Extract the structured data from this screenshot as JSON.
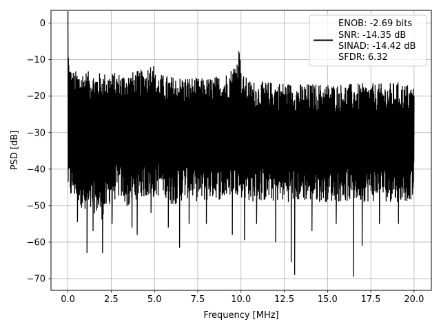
{
  "chart_data": {
    "type": "line",
    "xlabel": "Frequency [MHz]",
    "ylabel": "PSD [dB]",
    "xlim": [
      -0.98,
      21.0
    ],
    "ylim": [
      -73.2,
      3.5
    ],
    "xticks": [
      0.0,
      2.5,
      5.0,
      7.5,
      10.0,
      12.5,
      15.0,
      17.5,
      20.0
    ],
    "xtick_labels": [
      "0.0",
      "2.5",
      "5.0",
      "7.5",
      "10.0",
      "12.5",
      "15.0",
      "17.5",
      "20.0"
    ],
    "yticks": [
      0,
      -10,
      -20,
      -30,
      -40,
      -50,
      -60,
      -70
    ],
    "ytick_labels": [
      "0",
      "−10",
      "−20",
      "−30",
      "−40",
      "−50",
      "−60",
      "−70"
    ],
    "grid": true,
    "line_color": "#000000",
    "legend_position": "top-right",
    "legend": [
      "ENOB: -2.69 bits",
      "SNR: -14.35 dB",
      "SINAD: -14.42 dB",
      "SFDR: 6.32"
    ],
    "series": [
      {
        "x": [
          0.0,
          0.02,
          0.05,
          0.1,
          0.2,
          0.3,
          0.5,
          0.75,
          1.0,
          1.5,
          2.0,
          2.5,
          3.0,
          3.5,
          4.0,
          4.5,
          4.8,
          4.9,
          5.0,
          5.5,
          6.0,
          6.5,
          7.0,
          7.5,
          8.0,
          8.5,
          9.0,
          9.5,
          9.8,
          9.95,
          10.0,
          10.1,
          10.5,
          11.0,
          11.5,
          12.0,
          12.5,
          13.0,
          13.5,
          14.0,
          14.5,
          15.0,
          15.5,
          16.0,
          16.5,
          17.0,
          17.5,
          18.0,
          18.5,
          19.0,
          19.5,
          20.0
        ],
        "top": [
          0.0,
          -12.0,
          -15.0,
          -17.0,
          -18.5,
          -19.0,
          -19.0,
          -19.0,
          -19.0,
          -19.5,
          -19.5,
          -19.5,
          -19.5,
          -19.5,
          -19.0,
          -18.5,
          -16.5,
          -14.5,
          -19.5,
          -20.0,
          -20.5,
          -20.5,
          -20.5,
          -21.0,
          -21.0,
          -20.5,
          -20.0,
          -18.0,
          -15.0,
          -10.0,
          -19.0,
          -20.0,
          -21.5,
          -22.0,
          -22.0,
          -22.0,
          -22.0,
          -22.5,
          -22.5,
          -22.5,
          -22.5,
          -22.5,
          -22.5,
          -22.5,
          -22.5,
          -22.5,
          -22.5,
          -22.5,
          -22.5,
          -22.0,
          -22.5,
          -23.0
        ],
        "bottom": [
          -35.0,
          -47.0,
          -42.0,
          -44.0,
          -45.0,
          -44.0,
          -45.0,
          -46.0,
          -50.0,
          -48.0,
          -50.0,
          -45.0,
          -44.0,
          -47.0,
          -44.0,
          -44.0,
          -44.0,
          -44.0,
          -44.0,
          -43.0,
          -46.0,
          -45.0,
          -44.0,
          -45.0,
          -45.0,
          -44.0,
          -45.0,
          -43.0,
          -43.0,
          -43.0,
          -44.0,
          -44.0,
          -45.0,
          -45.0,
          -45.0,
          -45.0,
          -45.0,
          -45.0,
          -45.0,
          -45.0,
          -45.0,
          -45.0,
          -45.0,
          -45.0,
          -45.0,
          -45.0,
          -45.0,
          -45.0,
          -45.0,
          -45.0,
          -45.0,
          -44.0
        ]
      }
    ],
    "deep_dips": [
      {
        "x": 0.55,
        "y": -54.5
      },
      {
        "x": 1.1,
        "y": -63.0
      },
      {
        "x": 1.45,
        "y": -57.0
      },
      {
        "x": 2.0,
        "y": -63.0
      },
      {
        "x": 2.55,
        "y": -55.0
      },
      {
        "x": 3.7,
        "y": -56.0
      },
      {
        "x": 4.0,
        "y": -58.0
      },
      {
        "x": 4.8,
        "y": -52.0
      },
      {
        "x": 5.8,
        "y": -56.0
      },
      {
        "x": 6.45,
        "y": -61.5
      },
      {
        "x": 7.0,
        "y": -55.0
      },
      {
        "x": 8.0,
        "y": -55.0
      },
      {
        "x": 9.5,
        "y": -58.0
      },
      {
        "x": 10.2,
        "y": -59.5
      },
      {
        "x": 10.9,
        "y": -55.0
      },
      {
        "x": 12.0,
        "y": -60.0
      },
      {
        "x": 12.9,
        "y": -65.5
      },
      {
        "x": 13.1,
        "y": -69.0
      },
      {
        "x": 14.1,
        "y": -57.0
      },
      {
        "x": 15.5,
        "y": -55.0
      },
      {
        "x": 16.5,
        "y": -69.5
      },
      {
        "x": 17.0,
        "y": -61.0
      },
      {
        "x": 18.0,
        "y": -55.0
      },
      {
        "x": 19.1,
        "y": -55.0
      }
    ]
  }
}
